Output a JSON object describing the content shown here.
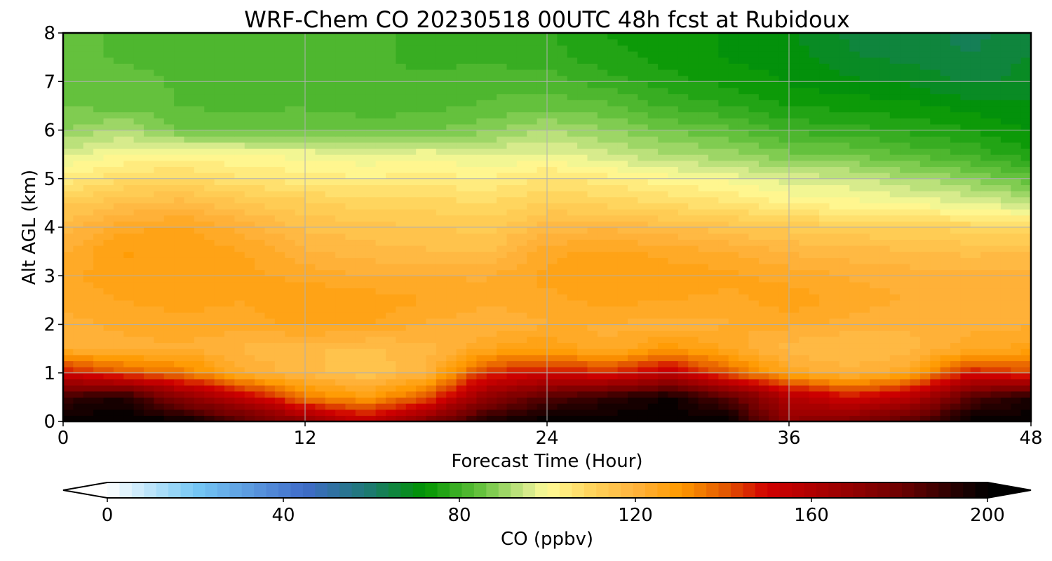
{
  "chart_data": {
    "type": "heatmap",
    "title": "WRF-Chem CO  20230518 00UTC 48h fcst at Rubidoux",
    "xlabel": "Forecast Time (Hour)",
    "ylabel": "Alt AGL (km)",
    "xlim": [
      0,
      48
    ],
    "ylim": [
      0,
      8
    ],
    "xticks": [
      0,
      12,
      24,
      36,
      48
    ],
    "yticks": [
      0,
      1,
      2,
      3,
      4,
      5,
      6,
      7,
      8
    ],
    "grid": true,
    "colorbar": {
      "label": "CO  (ppbv)",
      "orientation": "horizontal",
      "placement": "bottom",
      "range": [
        0,
        200
      ],
      "ticks": [
        0,
        40,
        80,
        120,
        160,
        200
      ],
      "extend": "both",
      "levels": 72,
      "stops": [
        {
          "value": 0,
          "color": "#ffffff"
        },
        {
          "value": 20,
          "color": "#76c8f5"
        },
        {
          "value": 45,
          "color": "#3f6bc9"
        },
        {
          "value": 60,
          "color": "#1b7a6d"
        },
        {
          "value": 72,
          "color": "#009400"
        },
        {
          "value": 85,
          "color": "#66c23e"
        },
        {
          "value": 95,
          "color": "#cfe88a"
        },
        {
          "value": 100,
          "color": "#fffc97"
        },
        {
          "value": 110,
          "color": "#ffd45c"
        },
        {
          "value": 120,
          "color": "#ffb33d"
        },
        {
          "value": 130,
          "color": "#ff9a00"
        },
        {
          "value": 140,
          "color": "#e45a00"
        },
        {
          "value": 150,
          "color": "#d00000"
        },
        {
          "value": 165,
          "color": "#a00000"
        },
        {
          "value": 180,
          "color": "#6e0000"
        },
        {
          "value": 192,
          "color": "#2a0000"
        },
        {
          "value": 200,
          "color": "#000000"
        }
      ]
    },
    "x": [
      0,
      3,
      6,
      9,
      12,
      15,
      18,
      21,
      24,
      27,
      30,
      33,
      36,
      39,
      42,
      45,
      48
    ],
    "y": [
      0,
      0.5,
      1,
      1.5,
      2,
      2.5,
      3,
      3.5,
      4,
      4.5,
      5,
      5.5,
      6,
      6.5,
      7,
      7.5,
      8
    ],
    "z": [
      [
        200,
        200,
        200,
        185,
        170,
        155,
        175,
        195,
        200,
        200,
        200,
        200,
        170,
        175,
        185,
        200,
        200
      ],
      [
        190,
        195,
        170,
        155,
        135,
        128,
        140,
        170,
        185,
        192,
        198,
        185,
        160,
        150,
        158,
        185,
        195
      ],
      [
        150,
        140,
        135,
        122,
        118,
        114,
        120,
        145,
        150,
        146,
        155,
        140,
        125,
        120,
        125,
        148,
        142
      ],
      [
        122,
        121,
        122,
        119,
        117,
        116,
        118,
        125,
        128,
        122,
        130,
        124,
        118,
        116,
        118,
        124,
        126
      ],
      [
        121,
        123,
        124,
        123,
        126,
        125,
        122,
        120,
        122,
        122,
        121,
        122,
        123,
        121,
        120,
        121,
        122
      ],
      [
        123,
        125,
        126,
        125,
        128,
        127,
        125,
        123,
        124,
        126,
        125,
        124,
        127,
        124,
        122,
        121,
        122
      ],
      [
        124,
        127,
        127,
        126,
        124,
        122,
        122,
        122,
        126,
        128,
        127,
        126,
        124,
        122,
        121,
        120,
        120
      ],
      [
        122,
        128,
        127,
        125,
        120,
        118,
        117,
        116,
        124,
        126,
        124,
        122,
        119,
        118,
        117,
        116,
        117
      ],
      [
        118,
        124,
        126,
        121,
        116,
        115,
        114,
        113,
        118,
        119,
        117,
        115,
        113,
        112,
        111,
        110,
        108
      ],
      [
        113,
        116,
        118,
        114,
        112,
        110,
        110,
        108,
        112,
        110,
        108,
        106,
        102,
        101,
        99,
        97,
        94
      ],
      [
        104,
        108,
        109,
        106,
        104,
        103,
        104,
        103,
        106,
        104,
        101,
        99,
        96,
        95,
        92,
        89,
        84
      ],
      [
        96,
        100,
        101,
        100,
        99,
        98,
        99,
        97,
        98,
        95,
        92,
        90,
        87,
        86,
        83,
        80,
        76
      ],
      [
        89,
        92,
        86,
        85,
        86,
        85,
        86,
        88,
        92,
        89,
        86,
        84,
        80,
        79,
        77,
        75,
        72
      ],
      [
        86,
        85,
        83,
        83,
        83,
        82,
        82,
        84,
        85,
        84,
        80,
        78,
        75,
        74,
        73,
        71,
        70
      ],
      [
        85,
        84,
        83,
        83,
        82,
        81,
        81,
        82,
        82,
        79,
        76,
        74,
        72,
        70,
        69,
        66,
        68
      ],
      [
        84,
        83,
        83,
        82,
        82,
        81,
        80,
        80,
        79,
        76,
        74,
        72,
        71,
        67,
        66,
        64,
        67
      ],
      [
        84,
        83,
        83,
        82,
        82,
        81,
        80,
        79,
        78,
        75,
        73,
        72,
        70,
        66,
        65,
        63,
        66
      ]
    ]
  }
}
